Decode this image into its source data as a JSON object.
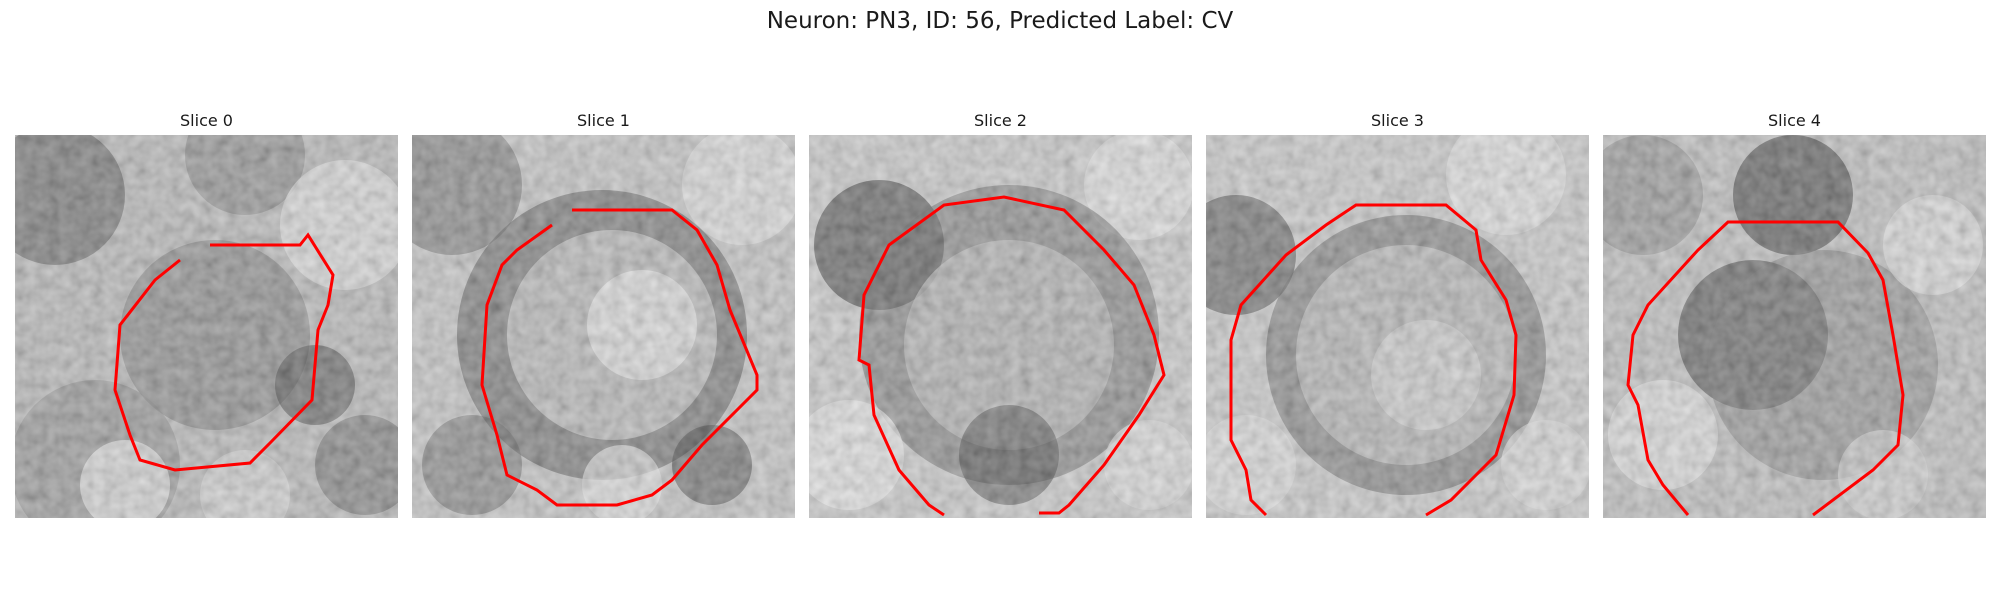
{
  "figure": {
    "title": "Neuron: PN3, ID: 56, Predicted Label: CV"
  },
  "panels": [
    {
      "title": "Slice 0"
    },
    {
      "title": "Slice 1"
    },
    {
      "title": "Slice 2"
    },
    {
      "title": "Slice 3"
    },
    {
      "title": "Slice 4"
    }
  ],
  "colors": {
    "contour": "#ff0000",
    "background": "#ffffff"
  }
}
